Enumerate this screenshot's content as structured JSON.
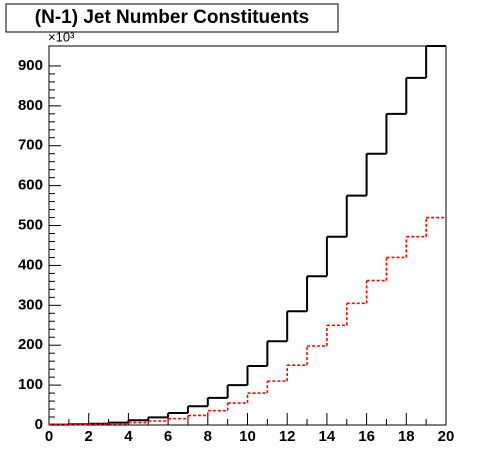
{
  "chart_data": {
    "type": "histogram",
    "title": "(N-1) Jet Number Constituents",
    "y_multiplier": "×10³",
    "bins": [
      0,
      1,
      2,
      3,
      4,
      5,
      6,
      7,
      8,
      9,
      10,
      11,
      12,
      13,
      14,
      15,
      16,
      17,
      18,
      19,
      20
    ],
    "series": [
      {
        "color": "#000000",
        "values": [
          1,
          2,
          3,
          6,
          12,
          19,
          30,
          47,
          68,
          100,
          148,
          210,
          285,
          373,
          472,
          575,
          680,
          780,
          870,
          950
        ]
      },
      {
        "color": "#ff0000",
        "values": [
          0.5,
          1,
          2,
          3,
          6,
          10,
          16,
          24,
          36,
          55,
          80,
          110,
          150,
          198,
          250,
          305,
          362,
          420,
          472,
          520
        ]
      }
    ],
    "xlim": [
      0,
      20
    ],
    "xticks": [
      0,
      2,
      4,
      6,
      8,
      10,
      12,
      14,
      16,
      18,
      20
    ],
    "ylim": [
      0,
      950
    ],
    "yticks": [
      0,
      100,
      200,
      300,
      400,
      500,
      600,
      700,
      800,
      900
    ]
  }
}
